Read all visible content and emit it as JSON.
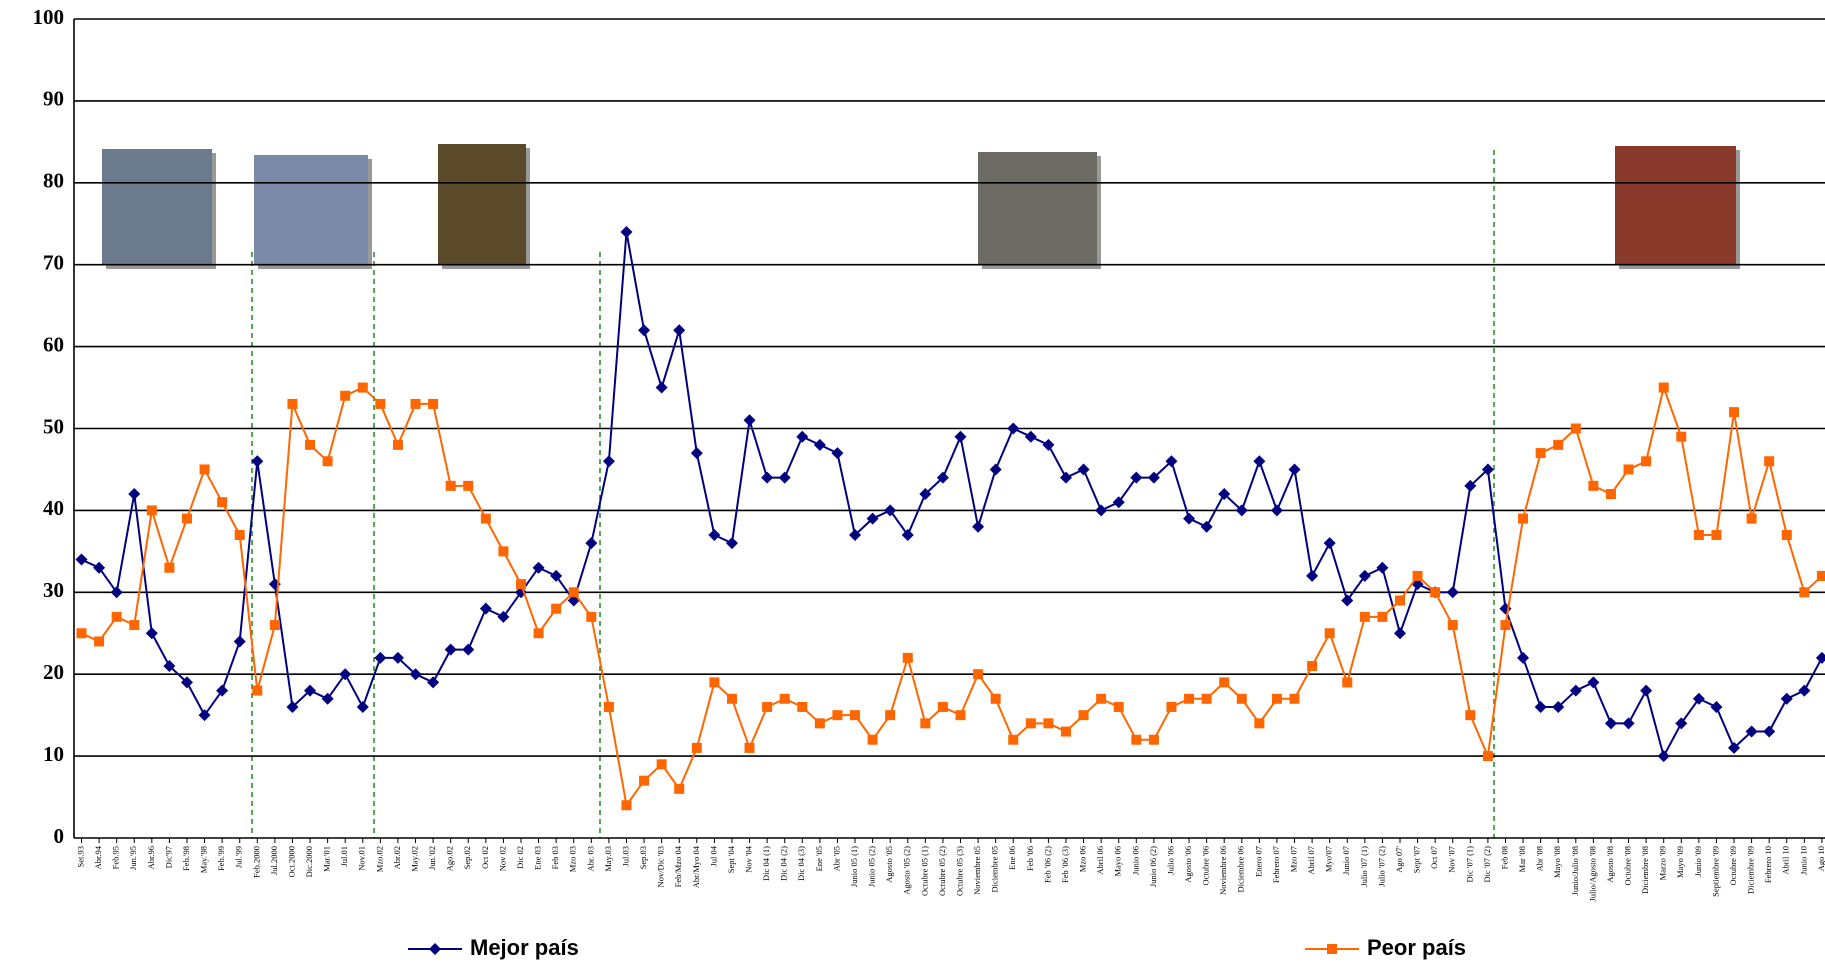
{
  "chart_data": {
    "type": "line",
    "categories": [
      "Set.93",
      "Abr.94",
      "Feb.95",
      "Jun.'95",
      "Abr.96",
      "Dic'97",
      "Feb.'98",
      "May.'98",
      "Feb.'99",
      "Jul.'99",
      "Feb.2000",
      "Jul.2000",
      "Oct.2000",
      "Dic.2000",
      "Mar.'01",
      "Jul.01",
      "Nov.01",
      "Mzo.02",
      "Abr.02",
      "May.02",
      "Jun.'02",
      "Ago.02",
      "Sep.02",
      "Oct 02",
      "Nov 02",
      "Dic 02",
      "Ene 03",
      "Feb 03",
      "Mzo 03",
      "Abr. 03",
      "May.03",
      "Jul.03",
      "Sep.03",
      "Nov/Dic '03",
      "Feb/Mzo 04",
      "Abr/Myo 04",
      "Jul 04",
      "Sept '04",
      "Nov '04",
      "Dic 04 (1)",
      "Dic 04 (2)",
      "Dic 04 (3)",
      "Ene '05",
      "Abr '05",
      "Junio 05 (1)",
      "Junio 05 (2)",
      "Agosto '05",
      "Agosto '05 (2)",
      "Octubre 05 (1)",
      "Octubre 05 (2)",
      "Octubre 05 (3)",
      "Noviembre 05",
      "Diciembre 05",
      "Ene 06",
      "Feb '06",
      "Feb '06 (2)",
      "Feb '06 (3)",
      "Mzo 06",
      "Abril 06",
      "Mayo 06",
      "Junio 06",
      "Junio 06 (2)",
      "Julio '06",
      "Agosto '06",
      "Octubre '06",
      "Noviembre 06",
      "Diciembre 06",
      "Enero 07",
      "Febrero 07",
      "Mzo 07",
      "Abril 07",
      "Myo'07",
      "Junio 07",
      "Julio '07 (1)",
      "Julio '07 (2)",
      "Ago 07'",
      "Sept '07",
      "Oct 07",
      "Nov '07",
      "Dic '07 (1)",
      "Dic '07 (2)",
      "Feb 08",
      "Mar '08",
      "Abr '08",
      "Mayo '08",
      "Junio/Julio '08",
      "Julio/Agosto '08",
      "Agosto '08",
      "Octubre '08",
      "Diciembre '08",
      "Marzo '09",
      "Mayo '09",
      "Junio '09",
      "Septiembre '09",
      "Octubre '09",
      "Diciembre '09",
      "Febrero 10",
      "Abril 10",
      "Junio 10",
      "Ago 10"
    ],
    "series": [
      {
        "name": "Mejor país",
        "color": "#000080",
        "marker": "diamond",
        "values": [
          34,
          33,
          30,
          42,
          25,
          21,
          19,
          15,
          18,
          24,
          46,
          31,
          16,
          18,
          17,
          20,
          16,
          22,
          22,
          20,
          19,
          23,
          23,
          28,
          27,
          30,
          33,
          32,
          29,
          36,
          46,
          74,
          62,
          55,
          62,
          47,
          37,
          36,
          51,
          44,
          44,
          49,
          48,
          47,
          37,
          39,
          40,
          37,
          42,
          44,
          49,
          38,
          45,
          50,
          49,
          48,
          44,
          45,
          40,
          41,
          44,
          44,
          46,
          39,
          38,
          42,
          40,
          46,
          40,
          45,
          32,
          36,
          29,
          32,
          33,
          25,
          31,
          30,
          30,
          43,
          45,
          28,
          22,
          16,
          16,
          18,
          19,
          14,
          14,
          18,
          10,
          14,
          17,
          16,
          11,
          13,
          13,
          17,
          18,
          22
        ]
      },
      {
        "name": "Peor país",
        "color": "#ff6600",
        "marker": "square",
        "values": [
          25,
          24,
          27,
          26,
          40,
          33,
          39,
          45,
          41,
          37,
          18,
          26,
          53,
          48,
          46,
          54,
          55,
          53,
          48,
          53,
          53,
          43,
          43,
          39,
          35,
          31,
          25,
          28,
          30,
          27,
          16,
          4,
          7,
          9,
          6,
          11,
          19,
          17,
          11,
          16,
          17,
          16,
          14,
          15,
          15,
          12,
          15,
          22,
          14,
          16,
          15,
          20,
          17,
          12,
          14,
          14,
          13,
          15,
          17,
          16,
          12,
          12,
          16,
          17,
          17,
          19,
          17,
          14,
          17,
          17,
          21,
          25,
          19,
          27,
          27,
          29,
          32,
          30,
          26,
          15,
          10,
          26,
          39,
          47,
          48,
          50,
          43,
          42,
          45,
          46,
          55,
          49,
          37,
          37,
          52,
          39,
          46,
          37,
          30,
          32
        ]
      }
    ],
    "ylim": [
      0,
      100
    ],
    "yticks": [
      0,
      10,
      20,
      30,
      40,
      50,
      60,
      70,
      80,
      90,
      100
    ],
    "grid": true,
    "legend": "bottom"
  }
}
